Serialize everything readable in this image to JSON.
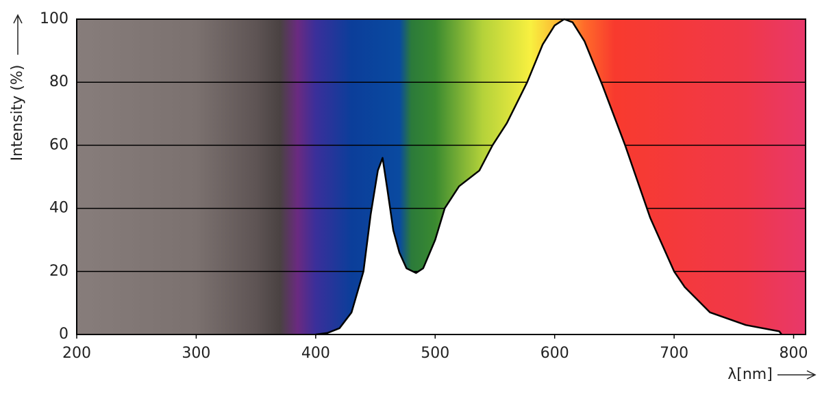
{
  "chart_data": {
    "type": "area",
    "y_label": "Intensity (%)",
    "x_label": "λ[nm]",
    "x": [
      400,
      410,
      420,
      430,
      440,
      446,
      452,
      456,
      460,
      465,
      470,
      476,
      484,
      490,
      500,
      508,
      520,
      537,
      548,
      560,
      577,
      590,
      600,
      608,
      615,
      625,
      640,
      659,
      680,
      700,
      709,
      730,
      760,
      788,
      790
    ],
    "values": [
      0,
      0.5,
      2,
      7,
      20,
      38,
      52,
      56,
      46,
      33,
      26,
      21,
      19.5,
      21,
      30,
      40,
      47,
      52,
      60,
      67,
      80,
      92,
      98,
      100,
      99,
      93,
      79,
      60,
      37,
      20,
      15,
      7,
      3,
      1,
      0
    ],
    "color": "#ffffff",
    "xlim": [
      200,
      810
    ],
    "ylim": [
      0,
      100
    ],
    "xticks": [
      200,
      300,
      400,
      500,
      600,
      700,
      800
    ],
    "yticks": [
      0,
      20,
      40,
      60,
      80,
      100
    ],
    "grid": true
  }
}
